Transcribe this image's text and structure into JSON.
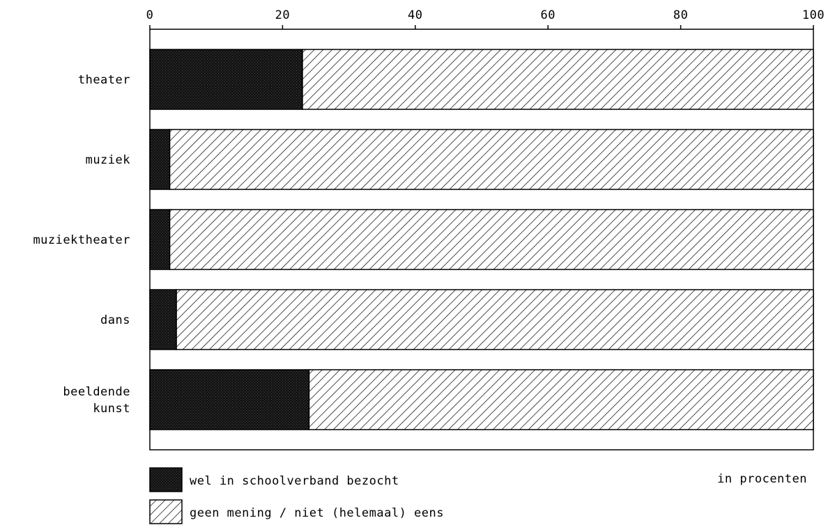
{
  "chart_data": {
    "type": "bar",
    "orientation": "horizontal",
    "stacked": true,
    "xlim": [
      0,
      100
    ],
    "xticks": [
      0,
      20,
      40,
      60,
      80,
      100
    ],
    "xtick_labels": [
      "0",
      "20",
      "40",
      "60",
      "80",
      "100"
    ],
    "categories": [
      [
        "theater"
      ],
      [
        "muziek"
      ],
      [
        "muziektheater"
      ],
      [
        "dans"
      ],
      [
        "beeldende",
        "kunst"
      ]
    ],
    "series": [
      {
        "name": "wel in schoolverband bezocht",
        "values": [
          23,
          3,
          3,
          4,
          24
        ],
        "color": "#1a1a1a",
        "pattern": "dark-stipple"
      },
      {
        "name": "geen mening / niet (helemaal) eens",
        "values": [
          77,
          97,
          97,
          96,
          76
        ],
        "color": "#000000",
        "pattern": "diagonal-hatch"
      }
    ],
    "unit_label": "in procenten",
    "legend_position": "bottom-left",
    "grid": false
  }
}
